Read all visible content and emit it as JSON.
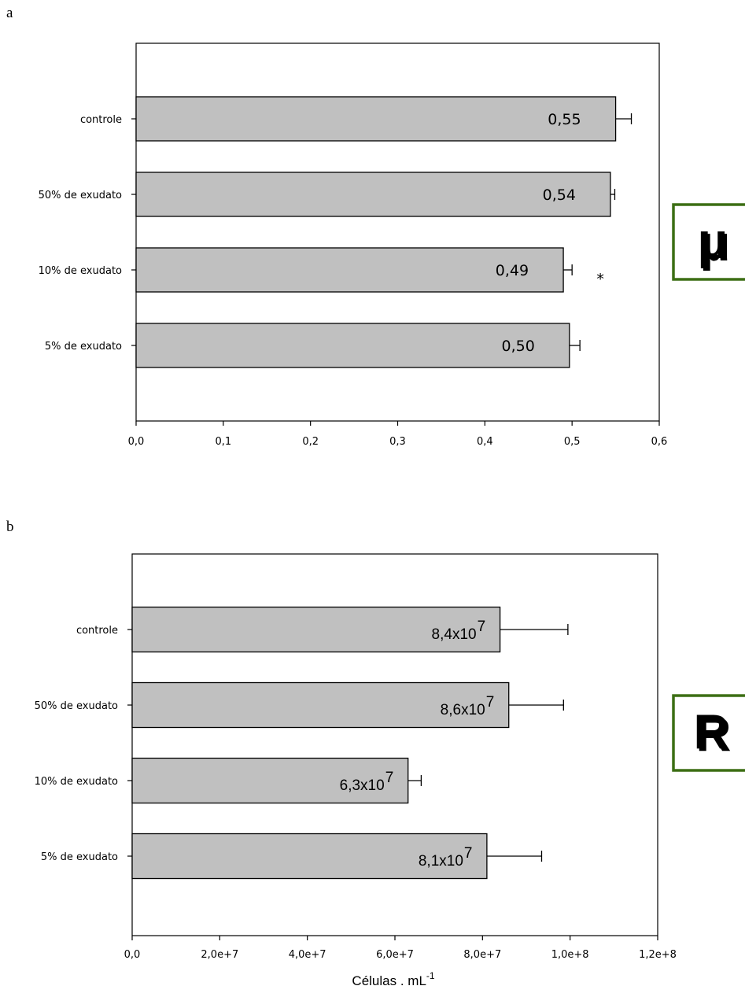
{
  "chart_data": [
    {
      "type": "bar",
      "orientation": "horizontal",
      "panel_label": "a",
      "categories": [
        "controle",
        "50% de exudato",
        "10% de exudato",
        "5% de exudato"
      ],
      "values": [
        0.55,
        0.544,
        0.49,
        0.497
      ],
      "errors": [
        0.018,
        0.005,
        0.01,
        0.012
      ],
      "value_labels": [
        "0,55",
        "0,54",
        "0,49",
        "0,50"
      ],
      "significance": [
        "",
        "",
        "*",
        ""
      ],
      "xlim": [
        0,
        0.6
      ],
      "xticks": [
        0,
        0.1,
        0.2,
        0.3,
        0.4,
        0.5,
        0.6
      ],
      "xtick_labels": [
        "0,0",
        "0,1",
        "0,2",
        "0,3",
        "0,4",
        "0,5",
        "0,6"
      ],
      "xlabel": "",
      "grid": false,
      "bar_color": "#c0c0c0",
      "badge": "μ",
      "badge_color": "#3c6e14"
    },
    {
      "type": "bar",
      "orientation": "horizontal",
      "panel_label": "b",
      "categories": [
        "controle",
        "50% de exudato",
        "10% de exudato",
        "5% de exudato"
      ],
      "values": [
        84000000,
        86000000,
        63000000,
        81000000
      ],
      "errors": [
        15500000,
        12500000,
        3000000,
        12500000
      ],
      "value_labels": [
        {
          "mantissa": "8,4x10",
          "exponent": "7"
        },
        {
          "mantissa": "8,6x10",
          "exponent": "7"
        },
        {
          "mantissa": "6,3x10",
          "exponent": "7"
        },
        {
          "mantissa": "8,1x10",
          "exponent": "7"
        }
      ],
      "xlim": [
        0,
        120000000
      ],
      "xticks": [
        0,
        20000000,
        40000000,
        60000000,
        80000000,
        100000000,
        120000000
      ],
      "xtick_labels": [
        "0,0",
        "2,0e+7",
        "4,0e+7",
        "6,0e+7",
        "8,0e+7",
        "1,0e+8",
        "1,2e+8"
      ],
      "xlabel": {
        "text": "Células . mL",
        "superscript": "-1"
      },
      "grid": false,
      "bar_color": "#c0c0c0",
      "badge": "R",
      "badge_color": "#3c6e14"
    }
  ]
}
